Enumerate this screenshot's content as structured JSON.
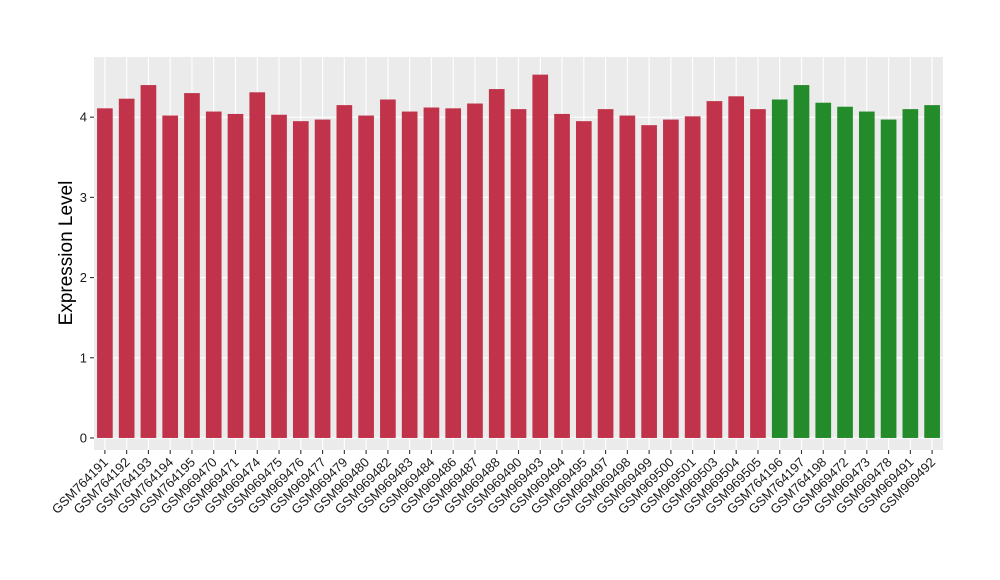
{
  "chart_data": {
    "type": "bar",
    "title": "",
    "xlabel": "",
    "ylabel": "Expression Level",
    "ylim": [
      -0.15,
      4.75
    ],
    "y_ticks": [
      0,
      1,
      2,
      3,
      4
    ],
    "grid": true,
    "panel_background": "#ebebeb",
    "group_colors": {
      "a": "#c0334a",
      "b": "#238b2a"
    },
    "categories": [
      "GSM764191",
      "GSM764192",
      "GSM764193",
      "GSM764194",
      "GSM764195",
      "GSM969470",
      "GSM969471",
      "GSM969474",
      "GSM969475",
      "GSM969476",
      "GSM969477",
      "GSM969479",
      "GSM969480",
      "GSM969482",
      "GSM969483",
      "GSM969484",
      "GSM969486",
      "GSM969487",
      "GSM969488",
      "GSM969490",
      "GSM969493",
      "GSM969494",
      "GSM969495",
      "GSM969497",
      "GSM969498",
      "GSM969499",
      "GSM969500",
      "GSM969501",
      "GSM969503",
      "GSM969504",
      "GSM969505",
      "GSM764196",
      "GSM764197",
      "GSM764198",
      "GSM969472",
      "GSM969473",
      "GSM969478",
      "GSM969491",
      "GSM969492"
    ],
    "values": [
      4.11,
      4.23,
      4.4,
      4.02,
      4.3,
      4.07,
      4.04,
      4.31,
      4.03,
      3.95,
      3.97,
      4.15,
      4.02,
      4.22,
      4.07,
      4.12,
      4.11,
      4.17,
      4.35,
      4.1,
      4.53,
      4.04,
      3.95,
      4.1,
      4.02,
      3.9,
      3.97,
      4.01,
      4.2,
      4.26,
      4.1,
      4.22,
      4.4,
      4.18,
      4.13,
      4.07,
      3.97,
      4.1,
      4.15
    ],
    "groups": [
      "a",
      "a",
      "a",
      "a",
      "a",
      "a",
      "a",
      "a",
      "a",
      "a",
      "a",
      "a",
      "a",
      "a",
      "a",
      "a",
      "a",
      "a",
      "a",
      "a",
      "a",
      "a",
      "a",
      "a",
      "a",
      "a",
      "a",
      "a",
      "a",
      "a",
      "a",
      "b",
      "b",
      "b",
      "b",
      "b",
      "b",
      "b",
      "b"
    ]
  }
}
